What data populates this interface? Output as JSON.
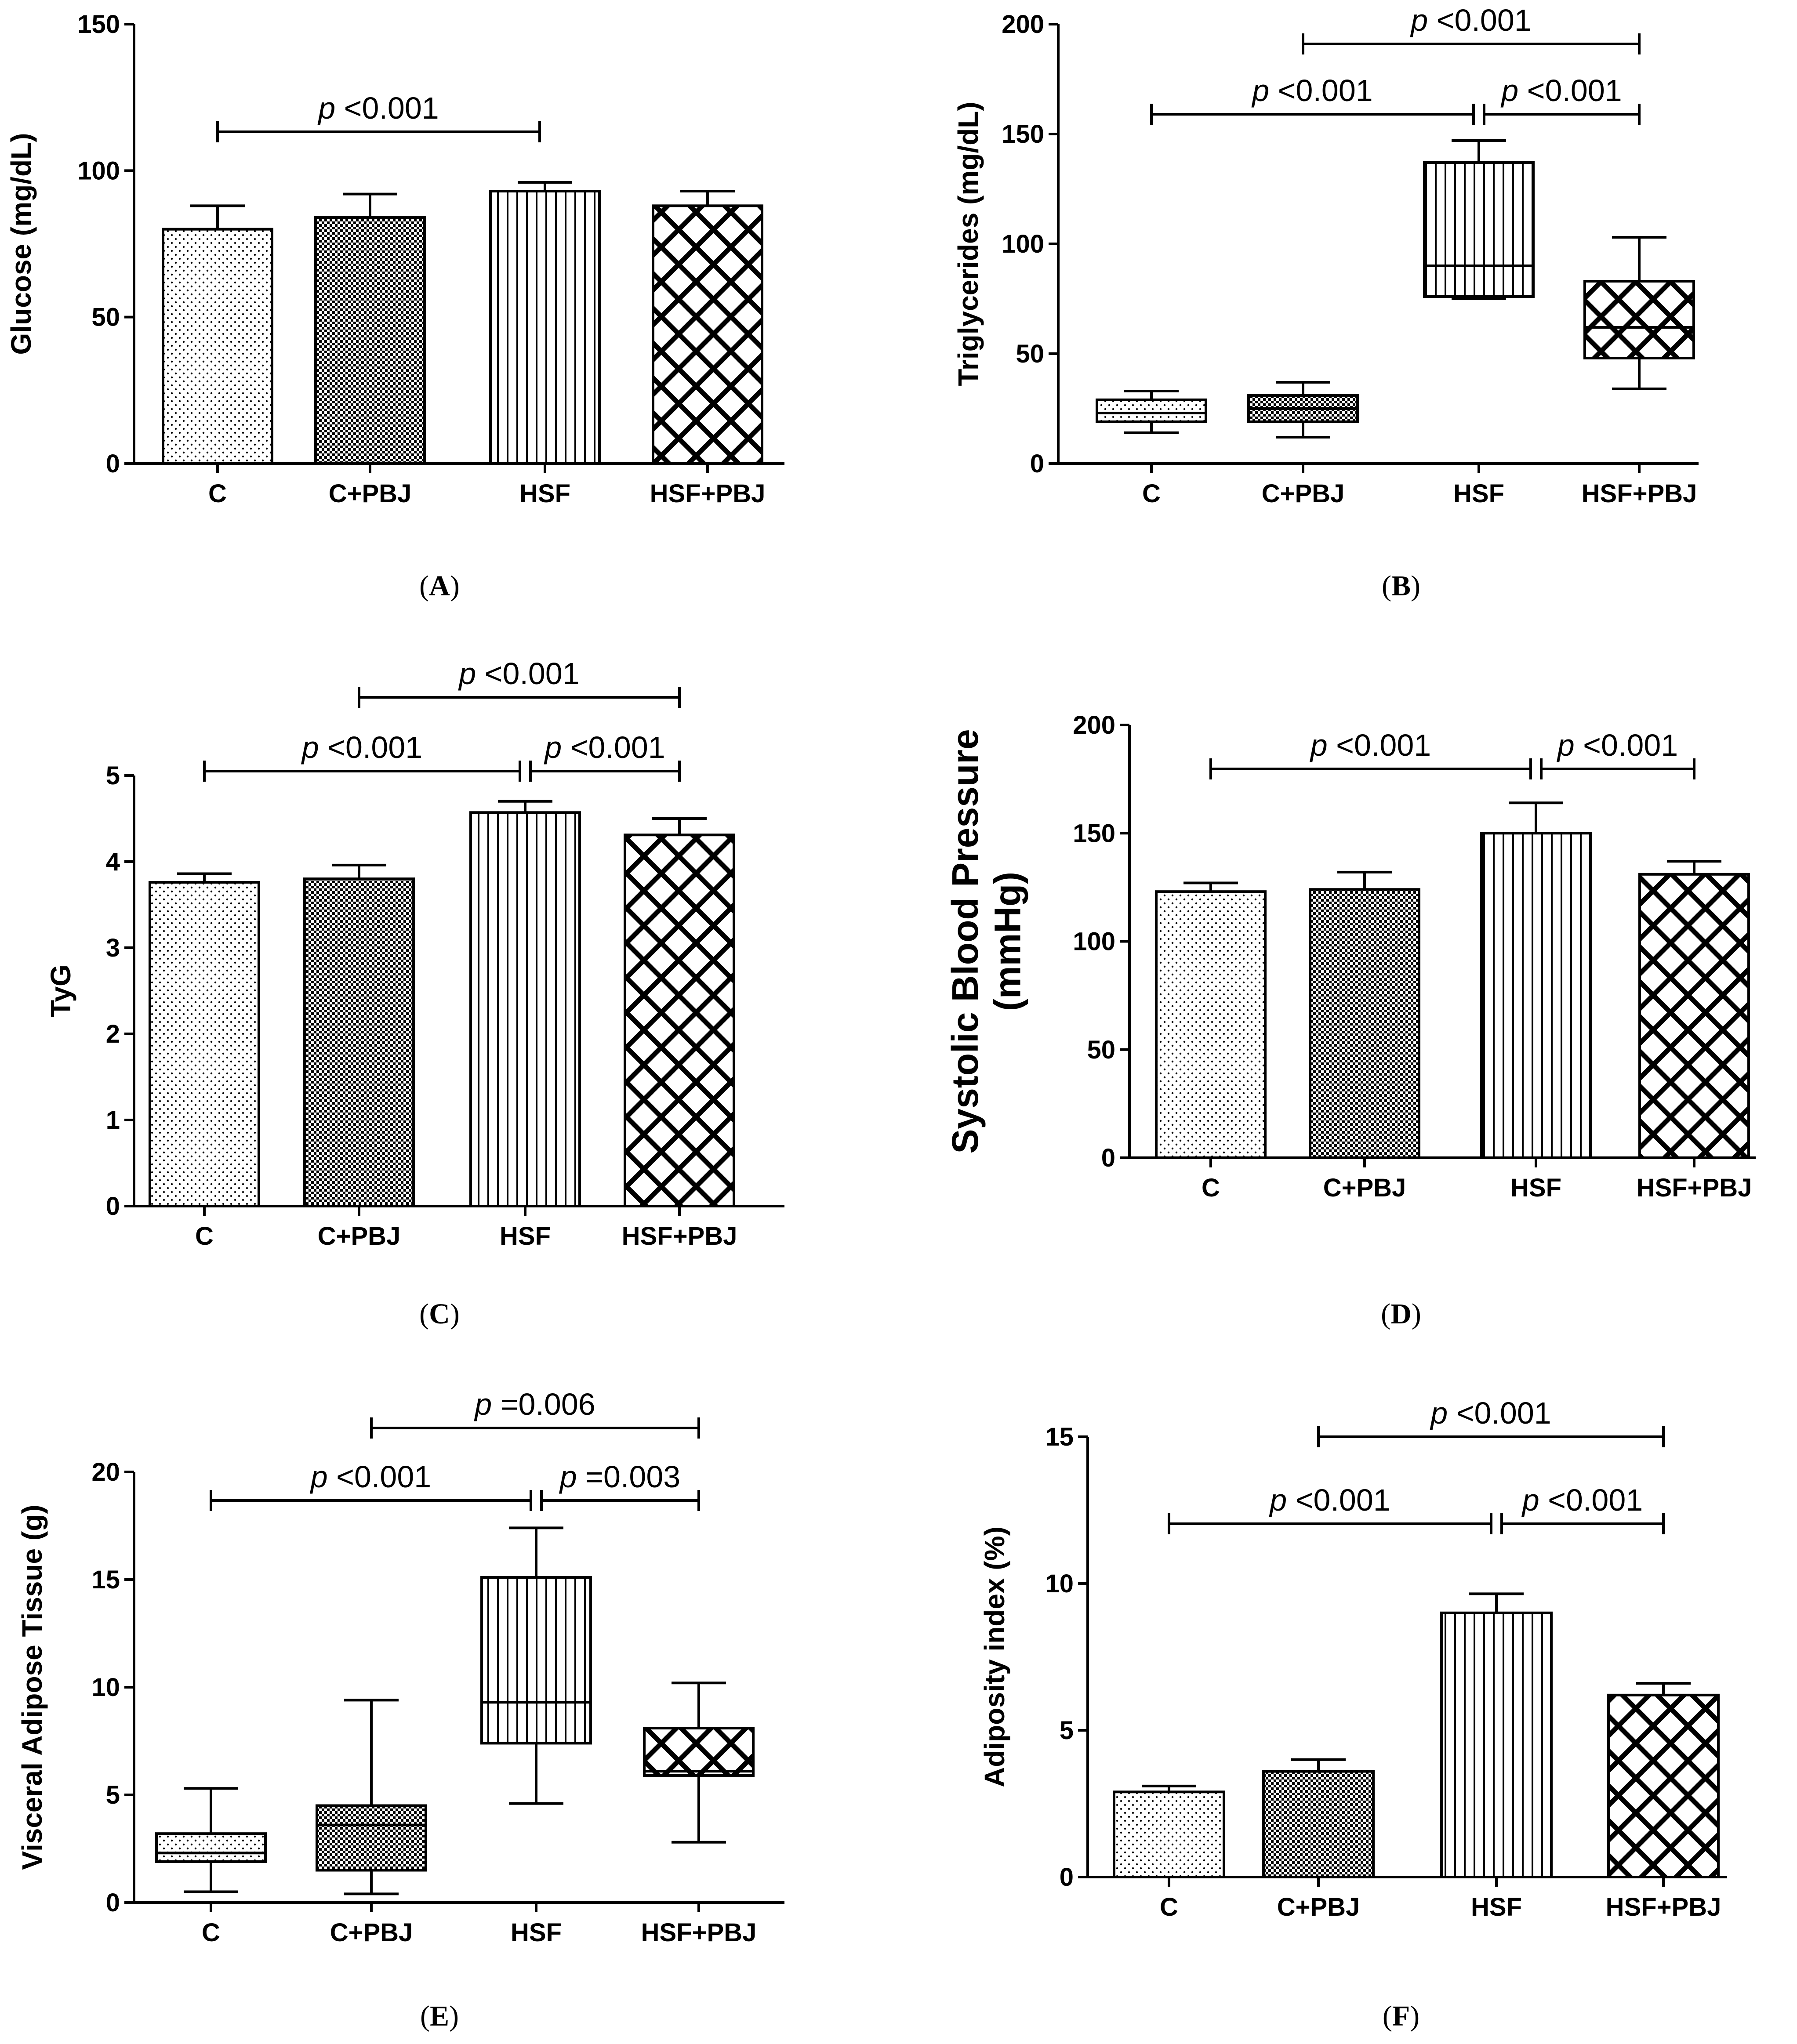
{
  "chart_data": [
    {
      "id": "A",
      "caption": "A",
      "type": "bar",
      "ylabel": "Glucose (mg/dL)",
      "categories": [
        "C",
        "C+PBJ",
        "HSF",
        "HSF+PBJ"
      ],
      "values": [
        80,
        84,
        93,
        88
      ],
      "errors": [
        8,
        8,
        3,
        5
      ],
      "ylim": [
        0,
        150
      ],
      "yticks": [
        0,
        50,
        100,
        150
      ],
      "significance": [
        {
          "from": 0,
          "to": 2,
          "label": "<0.001",
          "prefix": "p"
        }
      ]
    },
    {
      "id": "B",
      "caption": "B",
      "type": "box",
      "ylabel": "Triglycerides (mg/dL)",
      "categories": [
        "C",
        "C+PBJ",
        "HSF",
        "HSF+PBJ"
      ],
      "boxes": [
        {
          "min": 14,
          "q1": 19,
          "median": 23,
          "q3": 29,
          "max": 33
        },
        {
          "min": 12,
          "q1": 19,
          "median": 25,
          "q3": 31,
          "max": 37
        },
        {
          "min": 75,
          "q1": 76,
          "median": 90,
          "q3": 137,
          "max": 147
        },
        {
          "min": 34,
          "q1": 48,
          "median": 62,
          "q3": 83,
          "max": 103
        }
      ],
      "ylim": [
        0,
        200
      ],
      "yticks": [
        0,
        50,
        100,
        150,
        200
      ],
      "significance": [
        {
          "from": 0,
          "to": 2,
          "label": "<0.001",
          "prefix": "p"
        },
        {
          "from": 2,
          "to": 3,
          "label": "<0.001",
          "prefix": "p"
        },
        {
          "from": 1,
          "to": 3,
          "label": "<0.001",
          "prefix": "p"
        }
      ]
    },
    {
      "id": "C",
      "caption": "C",
      "type": "bar",
      "ylabel": "TyG",
      "categories": [
        "C",
        "C+PBJ",
        "HSF",
        "HSF+PBJ"
      ],
      "values": [
        3.76,
        3.8,
        4.57,
        4.31
      ],
      "errors": [
        0.1,
        0.16,
        0.13,
        0.19
      ],
      "ylim": [
        0,
        5
      ],
      "yticks": [
        0,
        1,
        2,
        3,
        4,
        5
      ],
      "significance": [
        {
          "from": 0,
          "to": 2,
          "label": "<0.001",
          "prefix": "p"
        },
        {
          "from": 2,
          "to": 3,
          "label": "<0.001",
          "prefix": "p"
        },
        {
          "from": 1,
          "to": 3,
          "label": "<0.001",
          "prefix": "p"
        }
      ]
    },
    {
      "id": "D",
      "caption": "D",
      "type": "bar",
      "ylabel": "Systolic Blood Pressure (mmHg)",
      "ylabel_lines": [
        "Systolic Blood Pressure",
        "(mmHg)"
      ],
      "categories": [
        "C",
        "C+PBJ",
        "HSF",
        "HSF+PBJ"
      ],
      "values": [
        123,
        124,
        150,
        131
      ],
      "errors": [
        4,
        8,
        14,
        6
      ],
      "ylim": [
        0,
        200
      ],
      "yticks": [
        0,
        50,
        100,
        150,
        200
      ],
      "significance": [
        {
          "from": 0,
          "to": 2,
          "label": "<0.001",
          "prefix": "p"
        },
        {
          "from": 2,
          "to": 3,
          "label": "<0.001",
          "prefix": "p"
        }
      ]
    },
    {
      "id": "E",
      "caption": "E",
      "type": "box",
      "ylabel": "Visceral Adipose Tissue (g)",
      "categories": [
        "C",
        "C+PBJ",
        "HSF",
        "HSF+PBJ"
      ],
      "boxes": [
        {
          "min": 0.5,
          "q1": 1.9,
          "median": 2.3,
          "q3": 3.2,
          "max": 5.3
        },
        {
          "min": 0.4,
          "q1": 1.5,
          "median": 3.6,
          "q3": 4.5,
          "max": 9.4
        },
        {
          "min": 4.6,
          "q1": 7.4,
          "median": 9.3,
          "q3": 15.1,
          "max": 17.4
        },
        {
          "min": 2.8,
          "q1": 5.9,
          "median": 6.1,
          "q3": 8.1,
          "max": 10.2
        }
      ],
      "ylim": [
        0,
        20
      ],
      "yticks": [
        0,
        5,
        10,
        15,
        20
      ],
      "significance": [
        {
          "from": 0,
          "to": 2,
          "label": "<0.001",
          "prefix": "p"
        },
        {
          "from": 2,
          "to": 3,
          "label": "=0.003",
          "prefix": "p"
        },
        {
          "from": 1,
          "to": 3,
          "label": "=0.006",
          "prefix": "p"
        }
      ]
    },
    {
      "id": "F",
      "caption": "F",
      "type": "bar",
      "ylabel": "Adiposity index (%)",
      "categories": [
        "C",
        "C+PBJ",
        "HSF",
        "HSF+PBJ"
      ],
      "values": [
        2.9,
        3.6,
        9.0,
        6.2
      ],
      "errors": [
        0.2,
        0.4,
        0.65,
        0.4
      ],
      "ylim": [
        0,
        15
      ],
      "yticks": [
        0,
        5,
        10,
        15
      ],
      "significance": [
        {
          "from": 0,
          "to": 2,
          "label": "<0.001",
          "prefix": "p"
        },
        {
          "from": 2,
          "to": 3,
          "label": "<0.001",
          "prefix": "p"
        },
        {
          "from": 1,
          "to": 3,
          "label": "<0.001",
          "prefix": "p"
        }
      ]
    }
  ]
}
